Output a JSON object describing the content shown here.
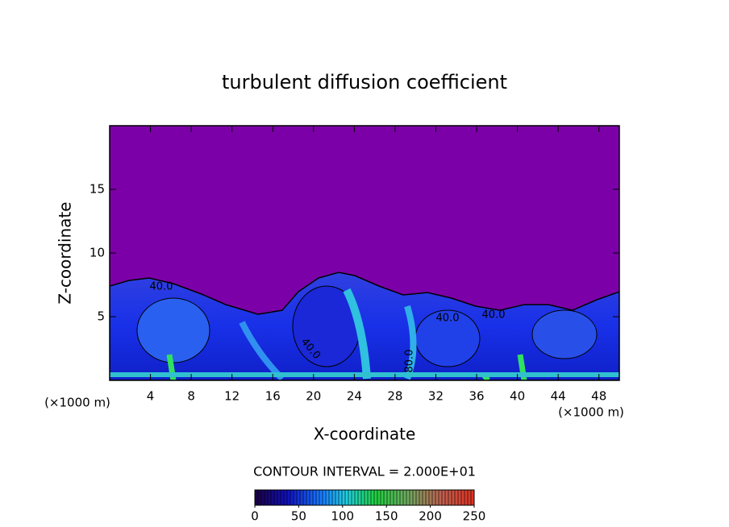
{
  "chart_data": {
    "type": "contour",
    "title": "turbulent diffusion coefficient",
    "x_label": "X-coordinate",
    "y_label": "Z-coordinate",
    "x_unit": "(×1000 m)",
    "xlim": [
      0,
      50
    ],
    "xticks": [
      4,
      8,
      12,
      16,
      20,
      24,
      28,
      32,
      36,
      40,
      44,
      48
    ],
    "ylim": [
      0,
      20
    ],
    "yticks": [
      5,
      10,
      15
    ],
    "contour_labels": [
      "40.0",
      "40.0",
      "40.0",
      "40.0",
      "80.0"
    ],
    "colorbar_title": "CONTOUR INTERVAL = 2.000E+01",
    "clim": [
      0,
      250
    ],
    "cticks": [
      0,
      50,
      100,
      150,
      200,
      250
    ]
  }
}
